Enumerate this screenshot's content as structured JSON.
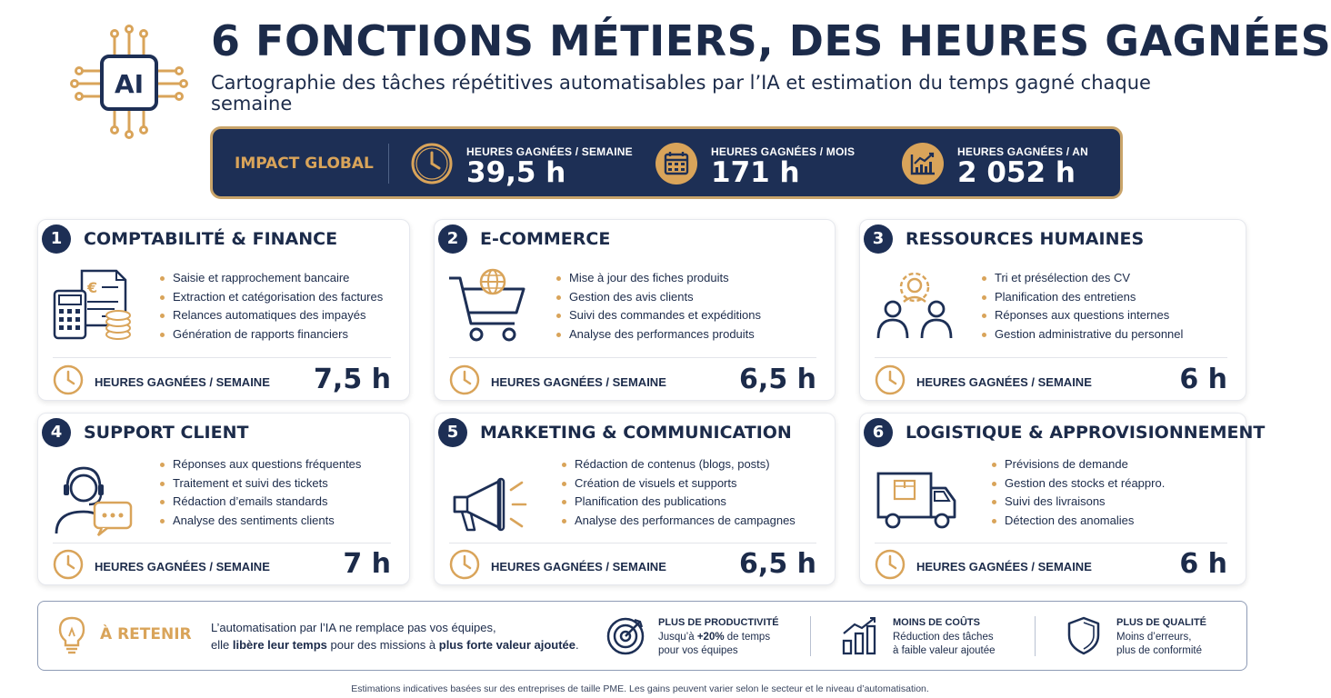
{
  "header": {
    "logo_text": "AI",
    "title": "6 FONCTIONS MÉTIERS, DES HEURES GAGNÉES",
    "subtitle": "Cartographie des tâches répétitives automatisables par l’IA et estimation du temps gagné chaque semaine"
  },
  "impact": {
    "label": "IMPACT GLOBAL",
    "stats": [
      {
        "label": "HEURES GAGNÉES / SEMAINE",
        "value": "39,5 h",
        "icon": "clock-icon"
      },
      {
        "label": "HEURES GAGNÉES / MOIS",
        "value": "171 h",
        "icon": "calendar-icon"
      },
      {
        "label": "HEURES GAGNÉES / AN",
        "value": "2 052 h",
        "icon": "growth-chart-icon"
      }
    ]
  },
  "hours_label": "HEURES GAGNÉES / SEMAINE",
  "cards": [
    {
      "num": "1",
      "title": "COMPTABILITÉ & FINANCE",
      "icon": "accounting-icon",
      "items": [
        "Saisie et rapprochement bancaire",
        "Extraction et catégorisation des factures",
        "Relances automatiques des impayés",
        "Génération de rapports financiers"
      ],
      "hours": "7,5 h"
    },
    {
      "num": "2",
      "title": "E-COMMERCE",
      "icon": "shopping-cart-icon",
      "items": [
        "Mise à jour des fiches produits",
        "Gestion des avis clients",
        "Suivi des commandes et expéditions",
        "Analyse des performances produits"
      ],
      "hours": "6,5 h"
    },
    {
      "num": "3",
      "title": "RESSOURCES HUMAINES",
      "icon": "people-icon",
      "items": [
        "Tri et présélection des CV",
        "Planification des entretiens",
        "Réponses aux questions internes",
        "Gestion administrative du personnel"
      ],
      "hours": "6 h"
    },
    {
      "num": "4",
      "title": "SUPPORT CLIENT",
      "icon": "headset-agent-icon",
      "items": [
        "Réponses aux questions fréquentes",
        "Traitement et suivi des tickets",
        "Rédaction d’emails standards",
        "Analyse des sentiments clients"
      ],
      "hours": "7 h"
    },
    {
      "num": "5",
      "title": "MARKETING & COMMUNICATION",
      "icon": "megaphone-icon",
      "items": [
        "Rédaction de contenus (blogs, posts)",
        "Création de visuels et supports",
        "Planification des publications",
        "Analyse des performances de campagnes"
      ],
      "hours": "6,5 h"
    },
    {
      "num": "6",
      "title": "LOGISTIQUE & APPROVISIONNEMENT",
      "icon": "delivery-truck-icon",
      "items": [
        "Prévisions de demande",
        "Gestion des stocks et réappro.",
        "Suivi des livraisons",
        "Détection des anomalies"
      ],
      "hours": "6 h"
    }
  ],
  "retenir": {
    "title": "À RETENIR",
    "line1": "L’automatisation par l’IA ne remplace pas vos équipes,",
    "line2_a": "elle ",
    "line2_b": "libère leur temps",
    "line2_c": " pour des missions à ",
    "line2_d": "plus forte valeur ajoutée",
    "line2_e": "."
  },
  "benefits": [
    {
      "title": "PLUS DE PRODUCTIVITÉ",
      "line1_a": "Jusqu’à ",
      "line1_b": "+20%",
      "line1_c": " de temps",
      "line2": "pour vos équipes",
      "icon": "target-icon"
    },
    {
      "title": "MOINS DE COÛTS",
      "line1_a": "Réduction des tâches",
      "line1_b": "",
      "line1_c": "",
      "line2": "à faible valeur ajoutée",
      "icon": "bar-chart-icon"
    },
    {
      "title": "PLUS DE QUALITÉ",
      "line1_a": "Moins d’erreurs,",
      "line1_b": "",
      "line1_c": "",
      "line2": "plus de conformité",
      "icon": "shield-icon"
    }
  ],
  "footer": "Estimations indicatives basées sur des entreprises de taille PME. Les gains peuvent varier selon le secteur et le niveau d’automatisation.",
  "colors": {
    "navy": "#1d2f55",
    "gold": "#d9a45a",
    "text": "#1c2b4a"
  }
}
